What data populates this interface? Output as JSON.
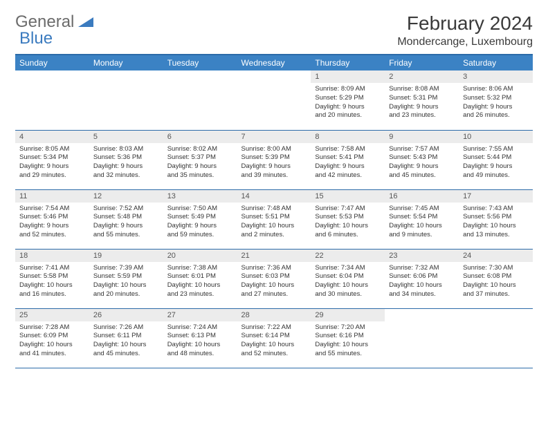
{
  "logo": {
    "text1": "General",
    "text2": "Blue"
  },
  "title": "February 2024",
  "location": "Mondercange, Luxembourg",
  "accent_color": "#3b82c4",
  "border_color": "#2b6aa8",
  "daynum_bg": "#ececec",
  "weekdays": [
    "Sunday",
    "Monday",
    "Tuesday",
    "Wednesday",
    "Thursday",
    "Friday",
    "Saturday"
  ],
  "weeks": [
    [
      {
        "n": "",
        "sr": "",
        "ss": "",
        "d1": "",
        "d2": ""
      },
      {
        "n": "",
        "sr": "",
        "ss": "",
        "d1": "",
        "d2": ""
      },
      {
        "n": "",
        "sr": "",
        "ss": "",
        "d1": "",
        "d2": ""
      },
      {
        "n": "",
        "sr": "",
        "ss": "",
        "d1": "",
        "d2": ""
      },
      {
        "n": "1",
        "sr": "Sunrise: 8:09 AM",
        "ss": "Sunset: 5:29 PM",
        "d1": "Daylight: 9 hours",
        "d2": "and 20 minutes."
      },
      {
        "n": "2",
        "sr": "Sunrise: 8:08 AM",
        "ss": "Sunset: 5:31 PM",
        "d1": "Daylight: 9 hours",
        "d2": "and 23 minutes."
      },
      {
        "n": "3",
        "sr": "Sunrise: 8:06 AM",
        "ss": "Sunset: 5:32 PM",
        "d1": "Daylight: 9 hours",
        "d2": "and 26 minutes."
      }
    ],
    [
      {
        "n": "4",
        "sr": "Sunrise: 8:05 AM",
        "ss": "Sunset: 5:34 PM",
        "d1": "Daylight: 9 hours",
        "d2": "and 29 minutes."
      },
      {
        "n": "5",
        "sr": "Sunrise: 8:03 AM",
        "ss": "Sunset: 5:36 PM",
        "d1": "Daylight: 9 hours",
        "d2": "and 32 minutes."
      },
      {
        "n": "6",
        "sr": "Sunrise: 8:02 AM",
        "ss": "Sunset: 5:37 PM",
        "d1": "Daylight: 9 hours",
        "d2": "and 35 minutes."
      },
      {
        "n": "7",
        "sr": "Sunrise: 8:00 AM",
        "ss": "Sunset: 5:39 PM",
        "d1": "Daylight: 9 hours",
        "d2": "and 39 minutes."
      },
      {
        "n": "8",
        "sr": "Sunrise: 7:58 AM",
        "ss": "Sunset: 5:41 PM",
        "d1": "Daylight: 9 hours",
        "d2": "and 42 minutes."
      },
      {
        "n": "9",
        "sr": "Sunrise: 7:57 AM",
        "ss": "Sunset: 5:43 PM",
        "d1": "Daylight: 9 hours",
        "d2": "and 45 minutes."
      },
      {
        "n": "10",
        "sr": "Sunrise: 7:55 AM",
        "ss": "Sunset: 5:44 PM",
        "d1": "Daylight: 9 hours",
        "d2": "and 49 minutes."
      }
    ],
    [
      {
        "n": "11",
        "sr": "Sunrise: 7:54 AM",
        "ss": "Sunset: 5:46 PM",
        "d1": "Daylight: 9 hours",
        "d2": "and 52 minutes."
      },
      {
        "n": "12",
        "sr": "Sunrise: 7:52 AM",
        "ss": "Sunset: 5:48 PM",
        "d1": "Daylight: 9 hours",
        "d2": "and 55 minutes."
      },
      {
        "n": "13",
        "sr": "Sunrise: 7:50 AM",
        "ss": "Sunset: 5:49 PM",
        "d1": "Daylight: 9 hours",
        "d2": "and 59 minutes."
      },
      {
        "n": "14",
        "sr": "Sunrise: 7:48 AM",
        "ss": "Sunset: 5:51 PM",
        "d1": "Daylight: 10 hours",
        "d2": "and 2 minutes."
      },
      {
        "n": "15",
        "sr": "Sunrise: 7:47 AM",
        "ss": "Sunset: 5:53 PM",
        "d1": "Daylight: 10 hours",
        "d2": "and 6 minutes."
      },
      {
        "n": "16",
        "sr": "Sunrise: 7:45 AM",
        "ss": "Sunset: 5:54 PM",
        "d1": "Daylight: 10 hours",
        "d2": "and 9 minutes."
      },
      {
        "n": "17",
        "sr": "Sunrise: 7:43 AM",
        "ss": "Sunset: 5:56 PM",
        "d1": "Daylight: 10 hours",
        "d2": "and 13 minutes."
      }
    ],
    [
      {
        "n": "18",
        "sr": "Sunrise: 7:41 AM",
        "ss": "Sunset: 5:58 PM",
        "d1": "Daylight: 10 hours",
        "d2": "and 16 minutes."
      },
      {
        "n": "19",
        "sr": "Sunrise: 7:39 AM",
        "ss": "Sunset: 5:59 PM",
        "d1": "Daylight: 10 hours",
        "d2": "and 20 minutes."
      },
      {
        "n": "20",
        "sr": "Sunrise: 7:38 AM",
        "ss": "Sunset: 6:01 PM",
        "d1": "Daylight: 10 hours",
        "d2": "and 23 minutes."
      },
      {
        "n": "21",
        "sr": "Sunrise: 7:36 AM",
        "ss": "Sunset: 6:03 PM",
        "d1": "Daylight: 10 hours",
        "d2": "and 27 minutes."
      },
      {
        "n": "22",
        "sr": "Sunrise: 7:34 AM",
        "ss": "Sunset: 6:04 PM",
        "d1": "Daylight: 10 hours",
        "d2": "and 30 minutes."
      },
      {
        "n": "23",
        "sr": "Sunrise: 7:32 AM",
        "ss": "Sunset: 6:06 PM",
        "d1": "Daylight: 10 hours",
        "d2": "and 34 minutes."
      },
      {
        "n": "24",
        "sr": "Sunrise: 7:30 AM",
        "ss": "Sunset: 6:08 PM",
        "d1": "Daylight: 10 hours",
        "d2": "and 37 minutes."
      }
    ],
    [
      {
        "n": "25",
        "sr": "Sunrise: 7:28 AM",
        "ss": "Sunset: 6:09 PM",
        "d1": "Daylight: 10 hours",
        "d2": "and 41 minutes."
      },
      {
        "n": "26",
        "sr": "Sunrise: 7:26 AM",
        "ss": "Sunset: 6:11 PM",
        "d1": "Daylight: 10 hours",
        "d2": "and 45 minutes."
      },
      {
        "n": "27",
        "sr": "Sunrise: 7:24 AM",
        "ss": "Sunset: 6:13 PM",
        "d1": "Daylight: 10 hours",
        "d2": "and 48 minutes."
      },
      {
        "n": "28",
        "sr": "Sunrise: 7:22 AM",
        "ss": "Sunset: 6:14 PM",
        "d1": "Daylight: 10 hours",
        "d2": "and 52 minutes."
      },
      {
        "n": "29",
        "sr": "Sunrise: 7:20 AM",
        "ss": "Sunset: 6:16 PM",
        "d1": "Daylight: 10 hours",
        "d2": "and 55 minutes."
      },
      {
        "n": "",
        "sr": "",
        "ss": "",
        "d1": "",
        "d2": ""
      },
      {
        "n": "",
        "sr": "",
        "ss": "",
        "d1": "",
        "d2": ""
      }
    ]
  ]
}
